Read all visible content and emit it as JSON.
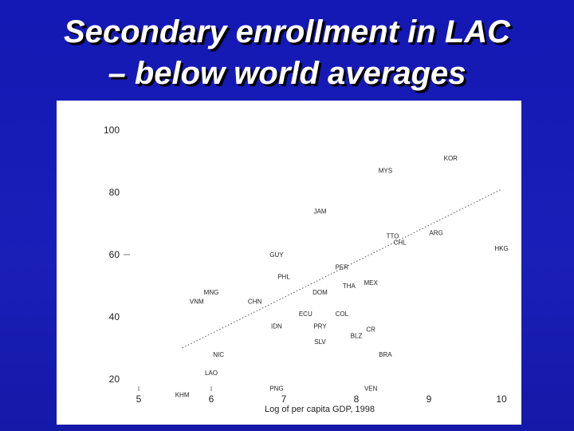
{
  "slide": {
    "title_line1": "Secondary enrollment in LAC",
    "title_line2": "– below world averages"
  },
  "colors": {
    "background": "#1418b4",
    "title_text": "#ffffff",
    "plot_background": "#ffffff",
    "plot_text": "#222222",
    "trend_line": "#555555"
  },
  "chart_data": {
    "type": "scatter",
    "xlabel": "Log of per capita GDP, 1998",
    "ylabel": "",
    "xlim": [
      4.6,
      10.3
    ],
    "ylim": [
      15,
      104
    ],
    "x_ticks": [
      "5",
      "6",
      "7",
      "8",
      "9",
      "10"
    ],
    "y_ticks": [
      "100",
      "80",
      "60",
      "40",
      "20"
    ],
    "grid": false,
    "points": [
      {
        "label": "KOR",
        "x": 9.3,
        "y": 91
      },
      {
        "label": "MYS",
        "x": 8.4,
        "y": 87
      },
      {
        "label": "JAM",
        "x": 7.5,
        "y": 74
      },
      {
        "label": "TTO",
        "x": 8.5,
        "y": 66
      },
      {
        "label": "CHL",
        "x": 8.6,
        "y": 64
      },
      {
        "label": "ARG",
        "x": 9.1,
        "y": 67
      },
      {
        "label": "HKG",
        "x": 10.0,
        "y": 62
      },
      {
        "label": "GUY",
        "x": 6.9,
        "y": 60
      },
      {
        "label": "PER",
        "x": 7.8,
        "y": 56
      },
      {
        "label": "PHL",
        "x": 7.0,
        "y": 53
      },
      {
        "label": "THA",
        "x": 7.9,
        "y": 50
      },
      {
        "label": "MEX",
        "x": 8.2,
        "y": 51
      },
      {
        "label": "MNG",
        "x": 6.0,
        "y": 48
      },
      {
        "label": "DOM",
        "x": 7.5,
        "y": 48
      },
      {
        "label": "CHN",
        "x": 6.6,
        "y": 45
      },
      {
        "label": "VNM",
        "x": 5.8,
        "y": 45
      },
      {
        "label": "ECU",
        "x": 7.3,
        "y": 41
      },
      {
        "label": "COL",
        "x": 7.8,
        "y": 41
      },
      {
        "label": "IDN",
        "x": 6.9,
        "y": 37
      },
      {
        "label": "PRY",
        "x": 7.5,
        "y": 37
      },
      {
        "label": "CR",
        "x": 8.2,
        "y": 36
      },
      {
        "label": "BLZ",
        "x": 8.0,
        "y": 34
      },
      {
        "label": "SLV",
        "x": 7.5,
        "y": 32
      },
      {
        "label": "NIC",
        "x": 6.1,
        "y": 28
      },
      {
        "label": "BRA",
        "x": 8.4,
        "y": 28
      },
      {
        "label": "LAO",
        "x": 6.0,
        "y": 22
      },
      {
        "label": "PNG",
        "x": 6.9,
        "y": 17
      },
      {
        "label": "VEN",
        "x": 8.2,
        "y": 17
      },
      {
        "label": "KHM",
        "x": 5.6,
        "y": 15
      }
    ],
    "trend_line": {
      "x": [
        5.6,
        10.0
      ],
      "y": [
        30,
        81
      ]
    }
  }
}
